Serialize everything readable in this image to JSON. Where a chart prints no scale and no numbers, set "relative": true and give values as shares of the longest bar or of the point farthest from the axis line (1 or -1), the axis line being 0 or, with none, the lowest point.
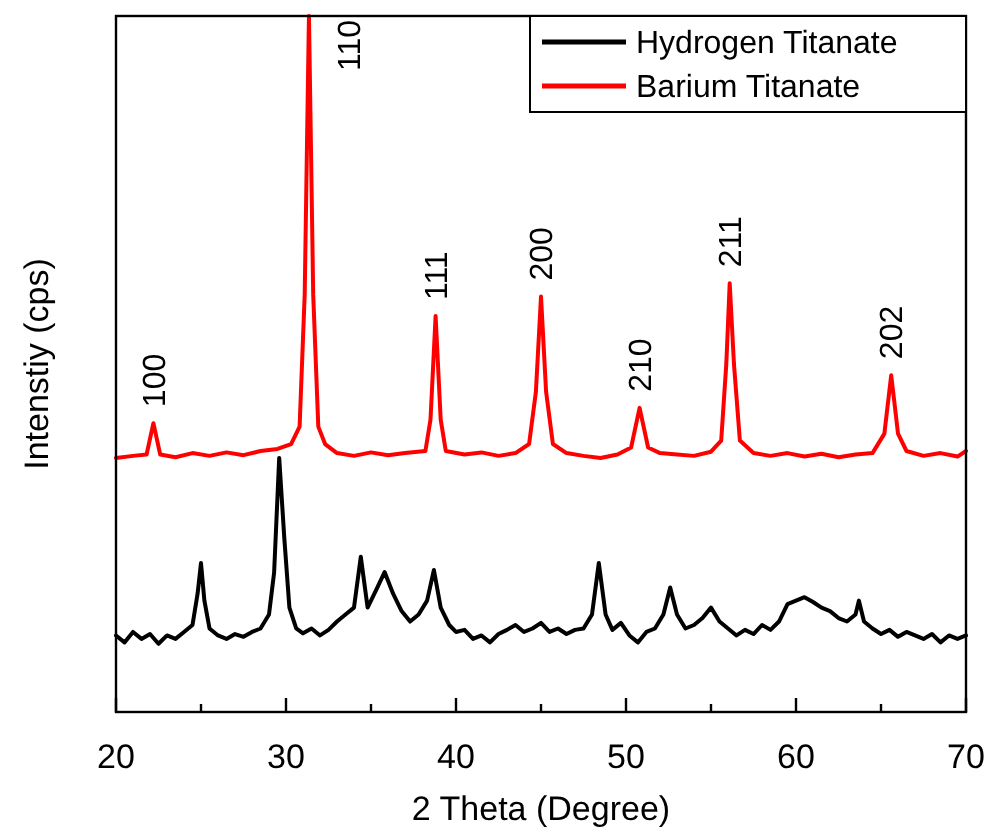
{
  "chart_data": {
    "type": "line",
    "relative": true,
    "xlabel": "2 Theta (Degree)",
    "ylabel": "Intenstiy (cps)",
    "xlim": [
      20,
      70
    ],
    "xticks": [
      20,
      {
        "value": 25,
        "label": null
      },
      30,
      {
        "value": 35,
        "label": null
      },
      40,
      {
        "value": 45,
        "label": null
      },
      50,
      {
        "value": 55,
        "label": null
      },
      60,
      {
        "value": 65,
        "label": null
      },
      70
    ],
    "legend": "top right",
    "tick_labels": "x",
    "series": [
      {
        "name": "Hydrogen Titanate",
        "color": "#000000",
        "x": [
          20,
          20.5,
          21,
          21.5,
          22,
          22.5,
          23,
          23.5,
          24,
          24.5,
          24.8,
          25.0,
          25.2,
          25.5,
          26,
          26.5,
          27,
          27.5,
          28,
          28.5,
          29,
          29.3,
          29.6,
          29.9,
          30.2,
          30.6,
          31,
          31.5,
          32,
          32.5,
          33,
          33.5,
          34,
          34.4,
          34.8,
          35.3,
          35.8,
          36.3,
          36.8,
          37.3,
          37.8,
          38.3,
          38.7,
          39.1,
          39.6,
          40,
          40.5,
          41,
          41.5,
          42,
          42.5,
          43,
          43.5,
          44,
          44.5,
          45,
          45.5,
          46,
          46.5,
          47,
          47.5,
          48,
          48.4,
          48.8,
          49.2,
          49.7,
          50.2,
          50.7,
          51.2,
          51.7,
          52.2,
          52.6,
          53,
          53.5,
          54,
          54.5,
          55,
          55.5,
          56,
          56.5,
          57,
          57.5,
          58,
          58.5,
          59,
          59.5,
          60,
          60.5,
          61,
          61.5,
          62,
          62.5,
          63,
          63.5,
          63.7,
          64,
          64.5,
          65,
          65.5,
          66,
          66.5,
          67,
          67.5,
          68,
          68.5,
          69,
          69.5,
          70
        ],
        "values": [
          0.11,
          0.1,
          0.115,
          0.105,
          0.112,
          0.098,
          0.11,
          0.105,
          0.115,
          0.125,
          0.17,
          0.214,
          0.16,
          0.12,
          0.11,
          0.105,
          0.112,
          0.108,
          0.115,
          0.12,
          0.14,
          0.2,
          0.365,
          0.25,
          0.15,
          0.12,
          0.113,
          0.12,
          0.11,
          0.118,
          0.13,
          0.14,
          0.15,
          0.223,
          0.15,
          0.175,
          0.201,
          0.17,
          0.145,
          0.13,
          0.14,
          0.16,
          0.204,
          0.15,
          0.125,
          0.115,
          0.118,
          0.105,
          0.11,
          0.1,
          0.112,
          0.118,
          0.125,
          0.115,
          0.12,
          0.128,
          0.115,
          0.12,
          0.112,
          0.118,
          0.12,
          0.14,
          0.214,
          0.14,
          0.118,
          0.128,
          0.11,
          0.1,
          0.115,
          0.12,
          0.14,
          0.179,
          0.14,
          0.12,
          0.125,
          0.135,
          0.15,
          0.13,
          0.12,
          0.11,
          0.118,
          0.112,
          0.125,
          0.118,
          0.13,
          0.155,
          0.16,
          0.165,
          0.158,
          0.15,
          0.145,
          0.135,
          0.13,
          0.14,
          0.16,
          0.13,
          0.12,
          0.112,
          0.118,
          0.108,
          0.115,
          0.11,
          0.105,
          0.112,
          0.1,
          0.11,
          0.105,
          0.11
        ]
      },
      {
        "name": "Barium Titanate",
        "color": "#ff0000",
        "x": [
          20,
          21,
          21.8,
          22.2,
          22.6,
          23.5,
          24.5,
          25.5,
          26.5,
          27.5,
          28.5,
          29.5,
          30.3,
          30.8,
          31.1,
          31.35,
          31.6,
          31.9,
          32.3,
          33,
          34,
          35,
          36,
          37,
          38.2,
          38.5,
          38.8,
          39.1,
          39.4,
          40.5,
          41.5,
          42.5,
          43.5,
          44.3,
          44.7,
          45.0,
          45.3,
          45.7,
          46.5,
          47.5,
          48.5,
          49.5,
          50.3,
          50.8,
          51.3,
          52,
          53,
          54,
          55,
          55.6,
          55.9,
          56.1,
          56.35,
          56.7,
          57.5,
          58.5,
          59.5,
          60.5,
          61.5,
          62.5,
          63.5,
          64.5,
          65.2,
          65.6,
          66.0,
          66.5,
          67.5,
          68.5,
          69.5,
          70
        ],
        "values": [
          0.365,
          0.368,
          0.37,
          0.415,
          0.37,
          0.366,
          0.372,
          0.368,
          0.373,
          0.369,
          0.375,
          0.378,
          0.385,
          0.41,
          0.6,
          1.0,
          0.6,
          0.41,
          0.385,
          0.372,
          0.368,
          0.373,
          0.369,
          0.372,
          0.375,
          0.42,
          0.569,
          0.42,
          0.375,
          0.37,
          0.373,
          0.368,
          0.372,
          0.385,
          0.46,
          0.597,
          0.46,
          0.385,
          0.372,
          0.368,
          0.365,
          0.37,
          0.38,
          0.437,
          0.38,
          0.372,
          0.37,
          0.368,
          0.374,
          0.39,
          0.5,
          0.616,
          0.5,
          0.39,
          0.372,
          0.368,
          0.372,
          0.367,
          0.371,
          0.366,
          0.37,
          0.372,
          0.4,
          0.484,
          0.4,
          0.375,
          0.368,
          0.372,
          0.367,
          0.375
        ]
      }
    ],
    "annotations": [
      {
        "text": "100",
        "x": 22.2,
        "y": 0.415
      },
      {
        "text": "110",
        "x": 31.35,
        "y": 1.0
      },
      {
        "text": "111",
        "x": 38.8,
        "y": 0.569
      },
      {
        "text": "200",
        "x": 45.0,
        "y": 0.597
      },
      {
        "text": "210",
        "x": 50.8,
        "y": 0.437
      },
      {
        "text": "211",
        "x": 56.1,
        "y": 0.616
      },
      {
        "text": "202",
        "x": 65.6,
        "y": 0.484
      }
    ]
  }
}
